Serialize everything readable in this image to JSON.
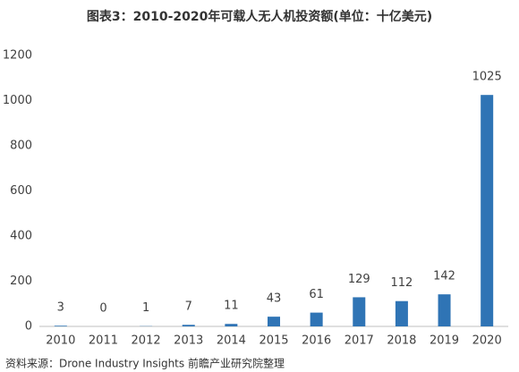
{
  "chart_data": {
    "type": "bar",
    "title": "图表3：2010-2020年可载人无人机投资额(单位：十亿美元)",
    "source": "资料来源：Drone Industry Insights 前瞻产业研究院整理",
    "categories": [
      "2010",
      "2011",
      "2012",
      "2013",
      "2014",
      "2015",
      "2016",
      "2017",
      "2018",
      "2019",
      "2020"
    ],
    "values": [
      3,
      0,
      1,
      7,
      11,
      43,
      61,
      129,
      112,
      142,
      1025
    ],
    "color": "#2f74b5",
    "ylim": [
      0,
      1200
    ],
    "yticks": [
      0,
      200,
      400,
      600,
      800,
      1000,
      1200
    ],
    "grid": false
  }
}
